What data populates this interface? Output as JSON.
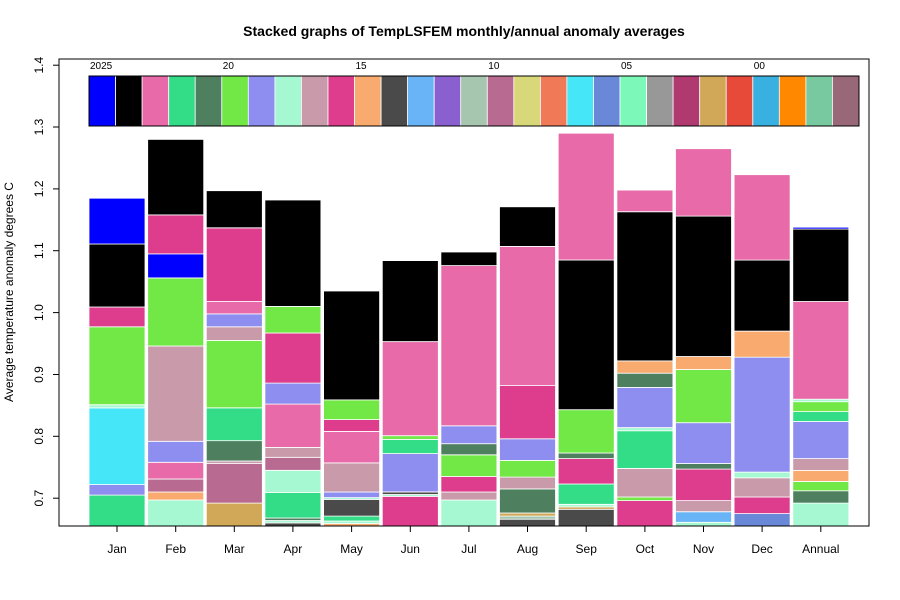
{
  "chart_data": {
    "type": "bar",
    "title": "Stacked graphs of TempLSFEM monthly/annual anomaly averages",
    "ylabel": "Average temperature anomaly degrees C",
    "xlabel": "",
    "categories": [
      "Jan",
      "Feb",
      "Mar",
      "Apr",
      "May",
      "Jun",
      "Jul",
      "Aug",
      "Sep",
      "Oct",
      "Nov",
      "Dec",
      "Annual"
    ],
    "ylim": [
      0.655,
      1.41
    ],
    "yticks": [
      0.7,
      0.8,
      0.9,
      1.0,
      1.1,
      1.2,
      1.3,
      1.4
    ],
    "ytick_labels": [
      "0.7",
      "0.8",
      "0.9",
      "1.0",
      "1.1",
      "1.2",
      "1.3",
      "1.4"
    ],
    "grid": false,
    "legend_year_labels": [
      {
        "label": "2025",
        "index": 0
      },
      {
        "label": "20",
        "index": 5
      },
      {
        "label": "15",
        "index": 10
      },
      {
        "label": "10",
        "index": 15
      },
      {
        "label": "05",
        "index": 20
      },
      {
        "label": "00",
        "index": 25
      }
    ],
    "legend_colors": [
      "#0000ff",
      "#000000",
      "#e86aa8",
      "#33dd88",
      "#4e8060",
      "#72e847",
      "#8e8ef0",
      "#a6f8d2",
      "#c89aaa",
      "#dd3d8c",
      "#f9aa6e",
      "#4a4a4a",
      "#69b4f6",
      "#8a5fd0",
      "#a6c6b0",
      "#b86a90",
      "#d8d87a",
      "#f07a58",
      "#45e6f8",
      "#6a88d8",
      "#7cf8b8",
      "#989898",
      "#b03a70",
      "#d0a858",
      "#e84a3a",
      "#38b0e0",
      "#ff8800",
      "#78c8a0",
      "#986878"
    ],
    "bars": [
      {
        "category": "Jan",
        "segments": [
          {
            "color": "#33dd88",
            "bottom": 0.655,
            "top": 0.705
          },
          {
            "color": "#8e8ef0",
            "bottom": 0.705,
            "top": 0.722
          },
          {
            "color": "#45e6f8",
            "bottom": 0.722,
            "top": 0.846
          },
          {
            "color": "#a6f8d2",
            "bottom": 0.846,
            "top": 0.851
          },
          {
            "color": "#72e847",
            "bottom": 0.851,
            "top": 0.977
          },
          {
            "color": "#dd3d8c",
            "bottom": 0.977,
            "top": 1.009
          },
          {
            "color": "#000000",
            "bottom": 1.009,
            "top": 1.111
          },
          {
            "color": "#0000ff",
            "bottom": 1.111,
            "top": 1.185
          }
        ]
      },
      {
        "category": "Feb",
        "segments": [
          {
            "color": "#a6f8d2",
            "bottom": 0.655,
            "top": 0.697
          },
          {
            "color": "#f9aa6e",
            "bottom": 0.697,
            "top": 0.71
          },
          {
            "color": "#b86a90",
            "bottom": 0.71,
            "top": 0.731
          },
          {
            "color": "#e86aa8",
            "bottom": 0.731,
            "top": 0.758
          },
          {
            "color": "#8e8ef0",
            "bottom": 0.758,
            "top": 0.792
          },
          {
            "color": "#c89aaa",
            "bottom": 0.792,
            "top": 0.946
          },
          {
            "color": "#72e847",
            "bottom": 0.946,
            "top": 1.056
          },
          {
            "color": "#0000ff",
            "bottom": 1.056,
            "top": 1.095
          },
          {
            "color": "#dd3d8c",
            "bottom": 1.095,
            "top": 1.158
          },
          {
            "color": "#000000",
            "bottom": 1.158,
            "top": 1.28
          }
        ]
      },
      {
        "category": "Mar",
        "segments": [
          {
            "color": "#d0a858",
            "bottom": 0.655,
            "top": 0.692
          },
          {
            "color": "#b86a90",
            "bottom": 0.692,
            "top": 0.756
          },
          {
            "color": "#c89aaa",
            "bottom": 0.756,
            "top": 0.76
          },
          {
            "color": "#4e8060",
            "bottom": 0.76,
            "top": 0.793
          },
          {
            "color": "#33dd88",
            "bottom": 0.793,
            "top": 0.846
          },
          {
            "color": "#72e847",
            "bottom": 0.846,
            "top": 0.955
          },
          {
            "color": "#c89aaa",
            "bottom": 0.955,
            "top": 0.977
          },
          {
            "color": "#8e8ef0",
            "bottom": 0.977,
            "top": 0.998
          },
          {
            "color": "#e86aa8",
            "bottom": 0.998,
            "top": 1.018
          },
          {
            "color": "#dd3d8c",
            "bottom": 1.018,
            "top": 1.137
          },
          {
            "color": "#000000",
            "bottom": 1.137,
            "top": 1.197
          }
        ]
      },
      {
        "category": "Apr",
        "segments": [
          {
            "color": "#4a4a4a",
            "bottom": 0.655,
            "top": 0.66
          },
          {
            "color": "#a6f8d2",
            "bottom": 0.66,
            "top": 0.664
          },
          {
            "color": "#4e8060",
            "bottom": 0.664,
            "top": 0.668
          },
          {
            "color": "#33dd88",
            "bottom": 0.668,
            "top": 0.709
          },
          {
            "color": "#a6f8d2",
            "bottom": 0.709,
            "top": 0.745
          },
          {
            "color": "#b86a90",
            "bottom": 0.745,
            "top": 0.766
          },
          {
            "color": "#c89aaa",
            "bottom": 0.766,
            "top": 0.782
          },
          {
            "color": "#e86aa8",
            "bottom": 0.782,
            "top": 0.852
          },
          {
            "color": "#8e8ef0",
            "bottom": 0.852,
            "top": 0.886
          },
          {
            "color": "#dd3d8c",
            "bottom": 0.886,
            "top": 0.967
          },
          {
            "color": "#72e847",
            "bottom": 0.967,
            "top": 1.01
          },
          {
            "color": "#000000",
            "bottom": 1.01,
            "top": 1.182
          }
        ]
      },
      {
        "category": "May",
        "segments": [
          {
            "color": "#f9aa6e",
            "bottom": 0.655,
            "top": 0.659
          },
          {
            "color": "#a6f8d2",
            "bottom": 0.659,
            "top": 0.663
          },
          {
            "color": "#33dd88",
            "bottom": 0.663,
            "top": 0.671
          },
          {
            "color": "#4a4a4a",
            "bottom": 0.671,
            "top": 0.698
          },
          {
            "color": "#a6f8d2",
            "bottom": 0.698,
            "top": 0.701
          },
          {
            "color": "#8e8ef0",
            "bottom": 0.701,
            "top": 0.71
          },
          {
            "color": "#c89aaa",
            "bottom": 0.71,
            "top": 0.757
          },
          {
            "color": "#e86aa8",
            "bottom": 0.757,
            "top": 0.808
          },
          {
            "color": "#dd3d8c",
            "bottom": 0.808,
            "top": 0.827
          },
          {
            "color": "#72e847",
            "bottom": 0.827,
            "top": 0.859
          },
          {
            "color": "#000000",
            "bottom": 0.859,
            "top": 1.035
          }
        ]
      },
      {
        "category": "Jun",
        "segments": [
          {
            "color": "#dd3d8c",
            "bottom": 0.655,
            "top": 0.703
          },
          {
            "color": "#a6f8d2",
            "bottom": 0.703,
            "top": 0.706
          },
          {
            "color": "#4a4a4a",
            "bottom": 0.706,
            "top": 0.71
          },
          {
            "color": "#8e8ef0",
            "bottom": 0.71,
            "top": 0.772
          },
          {
            "color": "#33dd88",
            "bottom": 0.772,
            "top": 0.795
          },
          {
            "color": "#72e847",
            "bottom": 0.795,
            "top": 0.801
          },
          {
            "color": "#e86aa8",
            "bottom": 0.801,
            "top": 0.953
          },
          {
            "color": "#000000",
            "bottom": 0.953,
            "top": 1.084
          }
        ]
      },
      {
        "category": "Jul",
        "segments": [
          {
            "color": "#a6f8d2",
            "bottom": 0.655,
            "top": 0.697
          },
          {
            "color": "#c89aaa",
            "bottom": 0.697,
            "top": 0.71
          },
          {
            "color": "#dd3d8c",
            "bottom": 0.71,
            "top": 0.735
          },
          {
            "color": "#72e847",
            "bottom": 0.735,
            "top": 0.77
          },
          {
            "color": "#4e8060",
            "bottom": 0.77,
            "top": 0.788
          },
          {
            "color": "#8e8ef0",
            "bottom": 0.788,
            "top": 0.817
          },
          {
            "color": "#e86aa8",
            "bottom": 0.817,
            "top": 1.076
          },
          {
            "color": "#000000",
            "bottom": 1.076,
            "top": 1.098
          }
        ]
      },
      {
        "category": "Aug",
        "segments": [
          {
            "color": "#4a4a4a",
            "bottom": 0.655,
            "top": 0.666
          },
          {
            "color": "#a6c6b0",
            "bottom": 0.666,
            "top": 0.671
          },
          {
            "color": "#d0a858",
            "bottom": 0.671,
            "top": 0.676
          },
          {
            "color": "#4e8060",
            "bottom": 0.676,
            "top": 0.715
          },
          {
            "color": "#c89aaa",
            "bottom": 0.715,
            "top": 0.734
          },
          {
            "color": "#72e847",
            "bottom": 0.734,
            "top": 0.761
          },
          {
            "color": "#8e8ef0",
            "bottom": 0.761,
            "top": 0.796
          },
          {
            "color": "#dd3d8c",
            "bottom": 0.796,
            "top": 0.882
          },
          {
            "color": "#e86aa8",
            "bottom": 0.882,
            "top": 1.107
          },
          {
            "color": "#000000",
            "bottom": 1.107,
            "top": 1.171
          }
        ]
      },
      {
        "category": "Sep",
        "segments": [
          {
            "color": "#4a4a4a",
            "bottom": 0.655,
            "top": 0.682
          },
          {
            "color": "#d0a858",
            "bottom": 0.682,
            "top": 0.686
          },
          {
            "color": "#a6f8d2",
            "bottom": 0.686,
            "top": 0.69
          },
          {
            "color": "#33dd88",
            "bottom": 0.69,
            "top": 0.723
          },
          {
            "color": "#dd3d8c",
            "bottom": 0.723,
            "top": 0.764
          },
          {
            "color": "#4e8060",
            "bottom": 0.764,
            "top": 0.773
          },
          {
            "color": "#72e847",
            "bottom": 0.773,
            "top": 0.843
          },
          {
            "color": "#000000",
            "bottom": 0.843,
            "top": 1.085
          },
          {
            "color": "#e86aa8",
            "bottom": 1.085,
            "top": 1.29
          }
        ]
      },
      {
        "category": "Oct",
        "segments": [
          {
            "color": "#dd3d8c",
            "bottom": 0.655,
            "top": 0.696
          },
          {
            "color": "#72e847",
            "bottom": 0.696,
            "top": 0.702
          },
          {
            "color": "#c89aaa",
            "bottom": 0.702,
            "top": 0.748
          },
          {
            "color": "#33dd88",
            "bottom": 0.748,
            "top": 0.809
          },
          {
            "color": "#a6f8d2",
            "bottom": 0.809,
            "top": 0.814
          },
          {
            "color": "#8e8ef0",
            "bottom": 0.814,
            "top": 0.879
          },
          {
            "color": "#4e8060",
            "bottom": 0.879,
            "top": 0.902
          },
          {
            "color": "#f9aa6e",
            "bottom": 0.902,
            "top": 0.922
          },
          {
            "color": "#000000",
            "bottom": 0.922,
            "top": 1.163
          },
          {
            "color": "#e86aa8",
            "bottom": 1.163,
            "top": 1.198
          }
        ]
      },
      {
        "category": "Nov",
        "segments": [
          {
            "color": "#a6f8d2",
            "bottom": 0.655,
            "top": 0.661
          },
          {
            "color": "#69b4f6",
            "bottom": 0.661,
            "top": 0.678
          },
          {
            "color": "#c89aaa",
            "bottom": 0.678,
            "top": 0.696
          },
          {
            "color": "#dd3d8c",
            "bottom": 0.696,
            "top": 0.747
          },
          {
            "color": "#4e8060",
            "bottom": 0.747,
            "top": 0.756
          },
          {
            "color": "#8e8ef0",
            "bottom": 0.756,
            "top": 0.822
          },
          {
            "color": "#72e847",
            "bottom": 0.822,
            "top": 0.908
          },
          {
            "color": "#f9aa6e",
            "bottom": 0.908,
            "top": 0.929
          },
          {
            "color": "#000000",
            "bottom": 0.929,
            "top": 1.156
          },
          {
            "color": "#e86aa8",
            "bottom": 1.156,
            "top": 1.265
          }
        ]
      },
      {
        "category": "Dec",
        "segments": [
          {
            "color": "#6a88d8",
            "bottom": 0.655,
            "top": 0.675
          },
          {
            "color": "#dd3d8c",
            "bottom": 0.675,
            "top": 0.702
          },
          {
            "color": "#c89aaa",
            "bottom": 0.702,
            "top": 0.733
          },
          {
            "color": "#a6f8d2",
            "bottom": 0.733,
            "top": 0.742
          },
          {
            "color": "#8e8ef0",
            "bottom": 0.742,
            "top": 0.928
          },
          {
            "color": "#f9aa6e",
            "bottom": 0.928,
            "top": 0.97
          },
          {
            "color": "#000000",
            "bottom": 0.97,
            "top": 1.085
          },
          {
            "color": "#e86aa8",
            "bottom": 1.085,
            "top": 1.223
          }
        ]
      },
      {
        "category": "Annual",
        "segments": [
          {
            "color": "#a6f8d2",
            "bottom": 0.655,
            "top": 0.692
          },
          {
            "color": "#4e8060",
            "bottom": 0.692,
            "top": 0.712
          },
          {
            "color": "#72e847",
            "bottom": 0.712,
            "top": 0.727
          },
          {
            "color": "#f9aa6e",
            "bottom": 0.727,
            "top": 0.745
          },
          {
            "color": "#c89aaa",
            "bottom": 0.745,
            "top": 0.764
          },
          {
            "color": "#8e8ef0",
            "bottom": 0.764,
            "top": 0.824
          },
          {
            "color": "#33dd88",
            "bottom": 0.824,
            "top": 0.84
          },
          {
            "color": "#72e847",
            "bottom": 0.84,
            "top": 0.856
          },
          {
            "color": "#a6f8d2",
            "bottom": 0.856,
            "top": 0.86
          },
          {
            "color": "#e86aa8",
            "bottom": 0.86,
            "top": 1.018
          },
          {
            "color": "#000000",
            "bottom": 1.018,
            "top": 1.135
          },
          {
            "color": "#0000ff",
            "bottom": 1.135,
            "top": 1.138
          }
        ]
      }
    ]
  }
}
